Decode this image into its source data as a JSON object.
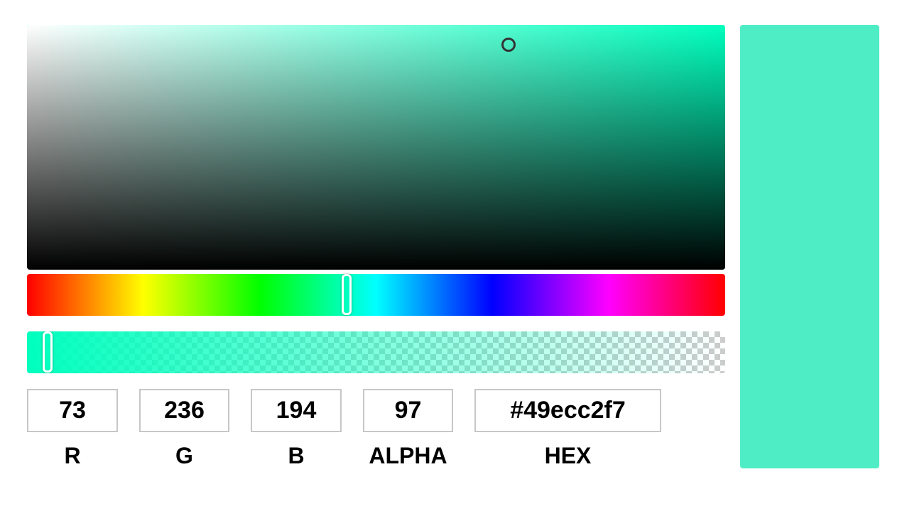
{
  "picker": {
    "hue_color": "#00ffbe",
    "preview_color": "#4fedc6",
    "hue_position": 0.458,
    "alpha_position": 0.03,
    "sv_saturation": 0.69,
    "sv_value": 0.92
  },
  "fields": {
    "r": {
      "value": "73",
      "label": "R"
    },
    "g": {
      "value": "236",
      "label": "G"
    },
    "b": {
      "value": "194",
      "label": "B"
    },
    "alpha": {
      "value": "97",
      "label": "ALPHA"
    },
    "hex": {
      "value": "#49ecc2f7",
      "label": "HEX"
    }
  }
}
